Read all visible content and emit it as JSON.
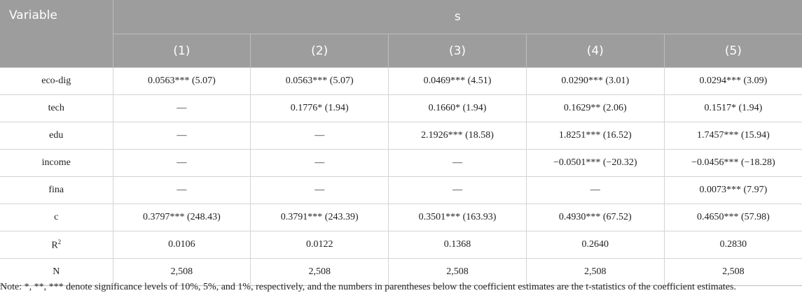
{
  "table": {
    "variable_header": "Variable",
    "group_header": "s",
    "model_headers": [
      "(1)",
      "(2)",
      "(3)",
      "(4)",
      "(5)"
    ],
    "rows": [
      {
        "name": "eco-dig",
        "cells": [
          "0.0563*** (5.07)",
          "0.0563*** (5.07)",
          "0.0469*** (4.51)",
          "0.0290*** (3.01)",
          "0.0294*** (3.09)"
        ]
      },
      {
        "name": "tech",
        "cells": [
          "—",
          "0.1776* (1.94)",
          "0.1660* (1.94)",
          "0.1629** (2.06)",
          "0.1517* (1.94)"
        ]
      },
      {
        "name": "edu",
        "cells": [
          "—",
          "—",
          "2.1926*** (18.58)",
          "1.8251*** (16.52)",
          "1.7457*** (15.94)"
        ]
      },
      {
        "name": "income",
        "cells": [
          "—",
          "—",
          "—",
          "−0.0501*** (−20.32)",
          "−0.0456*** (−18.28)"
        ]
      },
      {
        "name": "fina",
        "cells": [
          "—",
          "—",
          "—",
          "—",
          "0.0073*** (7.97)"
        ]
      },
      {
        "name": "c",
        "cells": [
          "0.3797*** (248.43)",
          "0.3791*** (243.39)",
          "0.3501*** (163.93)",
          "0.4930*** (67.52)",
          "0.4650*** (57.98)"
        ]
      },
      {
        "name_base": "R",
        "name_sup": "2",
        "cells": [
          "0.0106",
          "0.0122",
          "0.1368",
          "0.2640",
          "0.2830"
        ]
      },
      {
        "name": "N",
        "cells": [
          "2,508",
          "2,508",
          "2,508",
          "2,508",
          "2,508"
        ]
      }
    ]
  },
  "note": "Note: *, **, *** denote significance levels of 10%, 5%, and 1%, respectively, and the numbers in parentheses below the coefficient estimates are the t-statistics of the coefficient estimates."
}
